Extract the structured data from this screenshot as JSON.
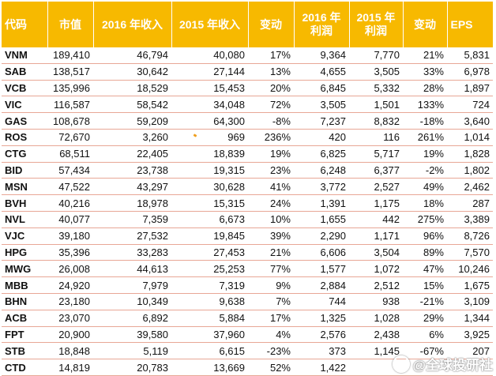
{
  "table": {
    "headers": [
      {
        "lines": [
          "代码"
        ]
      },
      {
        "lines": [
          "市值"
        ]
      },
      {
        "lines": [
          "2016 年收入"
        ]
      },
      {
        "lines": [
          "2015 年收入"
        ]
      },
      {
        "lines": [
          "变动"
        ]
      },
      {
        "lines": [
          "2016 年",
          "利润"
        ]
      },
      {
        "lines": [
          "2015 年",
          "利润"
        ]
      },
      {
        "lines": [
          "变动"
        ]
      },
      {
        "lines": [
          "EPS"
        ]
      }
    ],
    "rows": [
      [
        "VNM",
        "189,410",
        "46,794",
        "40,080",
        "17%",
        "9,364",
        "7,770",
        "21%",
        "5,831"
      ],
      [
        "SAB",
        "138,517",
        "30,642",
        "27,144",
        "13%",
        "4,655",
        "3,505",
        "33%",
        "6,978"
      ],
      [
        "VCB",
        "135,996",
        "18,529",
        "15,453",
        "20%",
        "6,845",
        "5,332",
        "28%",
        "1,897"
      ],
      [
        "VIC",
        "116,587",
        "58,542",
        "34,048",
        "72%",
        "3,505",
        "1,501",
        "133%",
        "724"
      ],
      [
        "GAS",
        "108,678",
        "59,209",
        "64,300",
        "-8%",
        "7,237",
        "8,832",
        "-18%",
        "3,640"
      ],
      [
        "ROS",
        "72,670",
        "3,260",
        "969",
        "236%",
        "420",
        "116",
        "261%",
        "1,014"
      ],
      [
        "CTG",
        "68,511",
        "22,405",
        "18,839",
        "19%",
        "6,825",
        "5,717",
        "19%",
        "1,828"
      ],
      [
        "BID",
        "57,434",
        "23,738",
        "19,315",
        "23%",
        "6,248",
        "6,377",
        "-2%",
        "1,802"
      ],
      [
        "MSN",
        "47,522",
        "43,297",
        "30,628",
        "41%",
        "3,772",
        "2,527",
        "49%",
        "2,462"
      ],
      [
        "BVH",
        "40,216",
        "18,978",
        "15,315",
        "24%",
        "1,391",
        "1,175",
        "18%",
        "287"
      ],
      [
        "NVL",
        "40,077",
        "7,359",
        "6,673",
        "10%",
        "1,655",
        "442",
        "275%",
        "3,389"
      ],
      [
        "VJC",
        "39,180",
        "27,532",
        "19,845",
        "39%",
        "2,290",
        "1,171",
        "96%",
        "8,726"
      ],
      [
        "HPG",
        "35,396",
        "33,283",
        "27,453",
        "21%",
        "6,606",
        "3,504",
        "89%",
        "7,570"
      ],
      [
        "MWG",
        "26,008",
        "44,613",
        "25,253",
        "77%",
        "1,577",
        "1,072",
        "47%",
        "10,246"
      ],
      [
        "MBB",
        "24,920",
        "7,979",
        "7,319",
        "9%",
        "2,884",
        "2,512",
        "15%",
        "1,675"
      ],
      [
        "BHN",
        "23,180",
        "10,349",
        "9,638",
        "7%",
        "744",
        "938",
        "-21%",
        "3,109"
      ],
      [
        "ACB",
        "23,070",
        "6,892",
        "5,884",
        "17%",
        "1,325",
        "1,028",
        "29%",
        "1,344"
      ],
      [
        "FPT",
        "20,900",
        "39,580",
        "37,960",
        "4%",
        "2,576",
        "2,438",
        "6%",
        "3,925"
      ],
      [
        "STB",
        "18,848",
        "5,119",
        "6,615",
        "-23%",
        "373",
        "1,145",
        "-67%",
        "207"
      ],
      [
        "CTD",
        "14,819",
        "20,783",
        "13,669",
        "52%",
        "1,422",
        "",
        "",
        ""
      ]
    ]
  },
  "watermark": {
    "text": "@全球投研社"
  },
  "colors": {
    "header_bg": "#f7b900",
    "header_text": "#ffffff",
    "row_border": "#e8a796"
  }
}
